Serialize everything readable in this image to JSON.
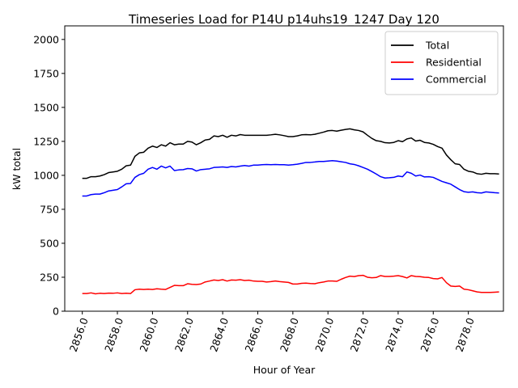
{
  "chart_data": {
    "type": "line",
    "title": "Timeseries Load for P14U p14uhs19_1247  Day 120",
    "xlabel": "Hour of Year",
    "ylabel": "kW total",
    "xlim": [
      2855.0,
      2880.0
    ],
    "ylim": [
      0,
      2100
    ],
    "xticks": [
      2856,
      2858,
      2860,
      2862,
      2864,
      2866,
      2868,
      2870,
      2872,
      2874,
      2876,
      2878
    ],
    "xtick_labels": [
      "2856.0",
      "2858.0",
      "2860.0",
      "2862.0",
      "2864.0",
      "2866.0",
      "2868.0",
      "2870.0",
      "2872.0",
      "2874.0",
      "2876.0",
      "2878.0"
    ],
    "yticks": [
      0,
      250,
      500,
      750,
      1000,
      1250,
      1500,
      1750,
      2000
    ],
    "ytick_labels": [
      "0",
      "250",
      "500",
      "750",
      "1000",
      "1250",
      "1500",
      "1750",
      "2000"
    ],
    "grid": false,
    "legend_position": "top-right",
    "x": [
      2856.0,
      2856.25,
      2856.5,
      2856.75,
      2857.0,
      2857.25,
      2857.5,
      2857.75,
      2858.0,
      2858.25,
      2858.5,
      2858.75,
      2859.0,
      2859.25,
      2859.5,
      2859.75,
      2860.0,
      2860.25,
      2860.5,
      2860.75,
      2861.0,
      2861.25,
      2861.5,
      2861.75,
      2862.0,
      2862.25,
      2862.5,
      2862.75,
      2863.0,
      2863.25,
      2863.5,
      2863.75,
      2864.0,
      2864.25,
      2864.5,
      2864.75,
      2865.0,
      2865.25,
      2865.5,
      2865.75,
      2866.0,
      2866.25,
      2866.5,
      2866.75,
      2867.0,
      2867.25,
      2867.5,
      2867.75,
      2868.0,
      2868.25,
      2868.5,
      2868.75,
      2869.0,
      2869.25,
      2869.5,
      2869.75,
      2870.0,
      2870.25,
      2870.5,
      2870.75,
      2871.0,
      2871.25,
      2871.5,
      2871.75,
      2872.0,
      2872.25,
      2872.5,
      2872.75,
      2873.0,
      2873.25,
      2873.5,
      2873.75,
      2874.0,
      2874.25,
      2874.5,
      2874.75,
      2875.0,
      2875.25,
      2875.5,
      2875.75,
      2876.0,
      2876.25,
      2876.5,
      2876.75,
      2877.0,
      2877.25,
      2877.5,
      2877.75,
      2878.0,
      2878.25,
      2878.5,
      2878.75,
      2879.0,
      2879.25,
      2879.5,
      2879.75
    ],
    "series": [
      {
        "name": "Total",
        "color": "#000000",
        "values": [
          978,
          978,
          990,
          990,
          995,
          1005,
          1020,
          1025,
          1030,
          1045,
          1070,
          1075,
          1140,
          1165,
          1170,
          1200,
          1215,
          1205,
          1225,
          1215,
          1240,
          1225,
          1230,
          1230,
          1250,
          1245,
          1225,
          1240,
          1260,
          1265,
          1290,
          1285,
          1295,
          1280,
          1295,
          1290,
          1300,
          1295,
          1295,
          1295,
          1295,
          1295,
          1295,
          1298,
          1302,
          1298,
          1292,
          1285,
          1285,
          1290,
          1298,
          1300,
          1298,
          1302,
          1310,
          1318,
          1328,
          1330,
          1325,
          1332,
          1338,
          1342,
          1335,
          1330,
          1320,
          1295,
          1272,
          1255,
          1250,
          1240,
          1238,
          1242,
          1255,
          1248,
          1268,
          1275,
          1252,
          1258,
          1242,
          1238,
          1228,
          1212,
          1200,
          1150,
          1115,
          1085,
          1080,
          1045,
          1030,
          1025,
          1012,
          1008,
          1015,
          1012,
          1012,
          1010
        ]
      },
      {
        "name": "Residential",
        "color": "#ff0000",
        "values": [
          130,
          130,
          135,
          128,
          132,
          130,
          133,
          132,
          135,
          130,
          132,
          130,
          158,
          162,
          160,
          162,
          160,
          165,
          162,
          160,
          175,
          190,
          188,
          188,
          202,
          198,
          196,
          200,
          215,
          222,
          230,
          226,
          232,
          222,
          230,
          228,
          232,
          226,
          228,
          222,
          220,
          220,
          215,
          218,
          222,
          218,
          215,
          212,
          200,
          200,
          205,
          207,
          204,
          202,
          210,
          215,
          222,
          222,
          220,
          235,
          248,
          258,
          255,
          262,
          264,
          250,
          246,
          248,
          262,
          256,
          256,
          258,
          262,
          255,
          245,
          262,
          256,
          254,
          250,
          248,
          240,
          238,
          248,
          210,
          185,
          182,
          185,
          162,
          158,
          150,
          142,
          138,
          138,
          138,
          140,
          142
        ]
      },
      {
        "name": "Commercial",
        "color": "#0000ff",
        "values": [
          848,
          848,
          858,
          862,
          862,
          872,
          885,
          890,
          895,
          915,
          938,
          940,
          985,
          1005,
          1015,
          1045,
          1058,
          1045,
          1068,
          1055,
          1068,
          1035,
          1040,
          1042,
          1050,
          1048,
          1032,
          1042,
          1045,
          1048,
          1058,
          1060,
          1062,
          1058,
          1065,
          1062,
          1068,
          1072,
          1068,
          1075,
          1075,
          1078,
          1080,
          1078,
          1080,
          1078,
          1078,
          1075,
          1078,
          1082,
          1088,
          1095,
          1095,
          1098,
          1102,
          1102,
          1105,
          1108,
          1105,
          1100,
          1095,
          1085,
          1080,
          1070,
          1058,
          1045,
          1028,
          1010,
          990,
          980,
          982,
          985,
          995,
          990,
          1025,
          1015,
          995,
          1002,
          988,
          990,
          985,
          970,
          955,
          945,
          935,
          915,
          895,
          880,
          875,
          878,
          872,
          870,
          878,
          875,
          872,
          870
        ]
      }
    ]
  }
}
